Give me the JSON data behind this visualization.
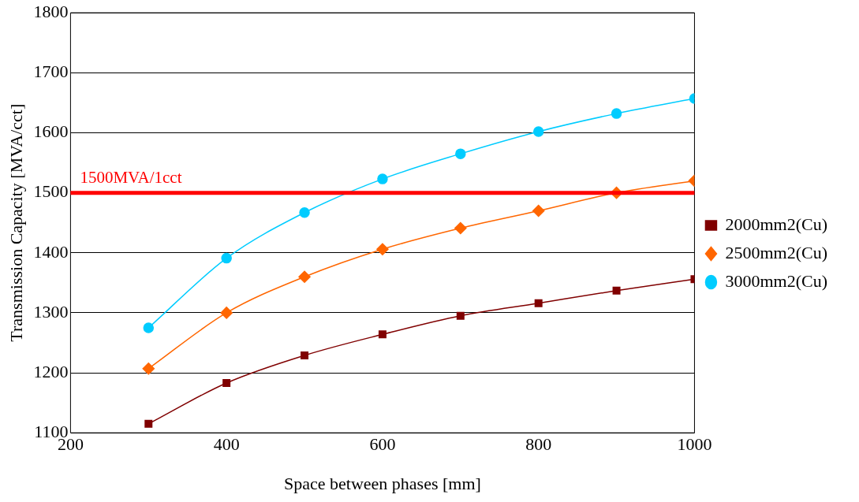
{
  "chart_data": {
    "type": "line",
    "xlabel": "Space between phases [mm]",
    "ylabel": "Transmission Capacity [MVA/cct]",
    "x": [
      300,
      400,
      500,
      600,
      700,
      800,
      900,
      1000
    ],
    "xlim": [
      200,
      1000
    ],
    "xticks": [
      200,
      400,
      600,
      800,
      1000
    ],
    "ylim": [
      1100,
      1800
    ],
    "yticks": [
      1100,
      1200,
      1300,
      1400,
      1500,
      1600,
      1700,
      1800
    ],
    "grid": "y",
    "legend": "right",
    "series": [
      {
        "name": "2000mm2(Cu)",
        "color": "#800000",
        "marker": "square",
        "values": [
          1115,
          1183,
          1229,
          1264,
          1295,
          1316,
          1337,
          1356
        ]
      },
      {
        "name": "2500mm2(Cu)",
        "color": "#ff6600",
        "marker": "diamond",
        "values": [
          1207,
          1300,
          1360,
          1406,
          1441,
          1470,
          1500,
          1520
        ]
      },
      {
        "name": "3000mm2(Cu)",
        "color": "#00ccff",
        "marker": "circle",
        "values": [
          1275,
          1391,
          1467,
          1523,
          1565,
          1602,
          1632,
          1657
        ]
      }
    ],
    "ref_lines": [
      {
        "axis": "y",
        "value": 1500,
        "label": "1500MVA/1cct",
        "color": "#ff0000"
      }
    ]
  }
}
